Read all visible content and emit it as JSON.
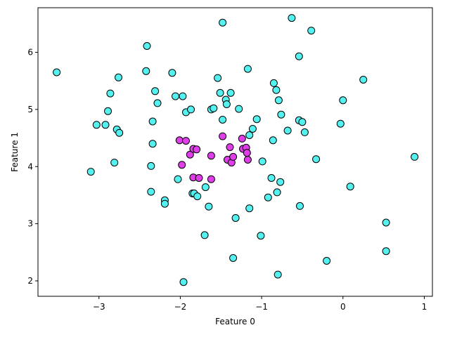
{
  "chart_data": {
    "type": "scatter",
    "title": "",
    "xlabel": "Feature 0",
    "ylabel": "Feature 1",
    "xlim": [
      -3.75,
      1.1
    ],
    "ylim": [
      1.73,
      6.78
    ],
    "xticks": [
      -3,
      -2,
      -1,
      0,
      1
    ],
    "yticks": [
      2,
      3,
      4,
      5,
      6
    ],
    "xtick_labels": [
      "−3",
      "−2",
      "−1",
      "0",
      "1"
    ],
    "ytick_labels": [
      "2",
      "3",
      "4",
      "5",
      "6"
    ],
    "grid": false,
    "colors": {
      "cyan": "#54f1f1",
      "magenta": "#df3ee8",
      "edge": "#000000"
    },
    "series": [
      {
        "color": "#54f1f1",
        "points": [
          [
            -3.52,
            5.65
          ],
          [
            -3.1,
            3.91
          ],
          [
            -3.03,
            4.73
          ],
          [
            -2.92,
            4.73
          ],
          [
            -2.89,
            4.97
          ],
          [
            -2.86,
            5.28
          ],
          [
            -2.81,
            4.07
          ],
          [
            -2.78,
            4.65
          ],
          [
            -2.76,
            5.56
          ],
          [
            -2.75,
            4.59
          ],
          [
            -2.41,
            6.11
          ],
          [
            -2.42,
            5.67
          ],
          [
            -2.36,
            3.56
          ],
          [
            -2.36,
            4.01
          ],
          [
            -2.34,
            4.4
          ],
          [
            -2.34,
            4.79
          ],
          [
            -2.31,
            5.32
          ],
          [
            -2.28,
            5.11
          ],
          [
            -2.19,
            3.41
          ],
          [
            -2.19,
            3.35
          ],
          [
            -2.1,
            5.64
          ],
          [
            -2.06,
            5.23
          ],
          [
            -2.03,
            3.78
          ],
          [
            -1.97,
            5.23
          ],
          [
            -1.93,
            4.95
          ],
          [
            -1.96,
            1.98
          ],
          [
            -1.87,
            5.0
          ],
          [
            -1.85,
            3.53
          ],
          [
            -1.83,
            3.53
          ],
          [
            -1.79,
            3.48
          ],
          [
            -1.69,
            3.64
          ],
          [
            -1.7,
            2.8
          ],
          [
            -1.65,
            3.3
          ],
          [
            -1.62,
            5.0
          ],
          [
            -1.59,
            5.02
          ],
          [
            -1.54,
            5.55
          ],
          [
            -1.51,
            5.29
          ],
          [
            -1.48,
            6.52
          ],
          [
            -1.48,
            4.82
          ],
          [
            -1.44,
            5.17
          ],
          [
            -1.43,
            5.09
          ],
          [
            -1.38,
            5.29
          ],
          [
            -1.35,
            2.4
          ],
          [
            -1.32,
            3.1
          ],
          [
            -1.28,
            5.01
          ],
          [
            -1.17,
            5.71
          ],
          [
            -1.15,
            4.55
          ],
          [
            -1.15,
            3.27
          ],
          [
            -1.11,
            4.66
          ],
          [
            -1.06,
            4.83
          ],
          [
            -1.01,
            2.79
          ],
          [
            -0.99,
            4.09
          ],
          [
            -0.92,
            3.46
          ],
          [
            -0.88,
            3.8
          ],
          [
            -0.86,
            4.46
          ],
          [
            -0.85,
            5.46
          ],
          [
            -0.82,
            5.34
          ],
          [
            -0.81,
            3.55
          ],
          [
            -0.79,
            5.16
          ],
          [
            -0.8,
            2.11
          ],
          [
            -0.77,
            3.73
          ],
          [
            -0.76,
            4.91
          ],
          [
            -0.68,
            4.63
          ],
          [
            -0.63,
            6.6
          ],
          [
            -0.54,
            5.93
          ],
          [
            -0.54,
            4.81
          ],
          [
            -0.53,
            3.31
          ],
          [
            -0.5,
            4.78
          ],
          [
            -0.47,
            4.6
          ],
          [
            -0.39,
            6.38
          ],
          [
            -0.33,
            4.13
          ],
          [
            -0.2,
            2.35
          ],
          [
            -0.03,
            4.75
          ],
          [
            0.0,
            5.16
          ],
          [
            0.09,
            3.65
          ],
          [
            0.25,
            5.52
          ],
          [
            0.53,
            3.02
          ],
          [
            0.53,
            2.52
          ],
          [
            0.88,
            4.17
          ]
        ]
      },
      {
        "color": "#df3ee8",
        "points": [
          [
            -2.01,
            4.46
          ],
          [
            -1.98,
            4.03
          ],
          [
            -1.93,
            4.45
          ],
          [
            -1.88,
            4.21
          ],
          [
            -1.84,
            4.31
          ],
          [
            -1.84,
            3.81
          ],
          [
            -1.8,
            4.3
          ],
          [
            -1.77,
            3.8
          ],
          [
            -1.62,
            4.19
          ],
          [
            -1.62,
            3.78
          ],
          [
            -1.48,
            4.53
          ],
          [
            -1.42,
            4.12
          ],
          [
            -1.39,
            4.34
          ],
          [
            -1.37,
            4.07
          ],
          [
            -1.35,
            4.17
          ],
          [
            -1.24,
            4.49
          ],
          [
            -1.23,
            4.31
          ],
          [
            -1.19,
            4.33
          ],
          [
            -1.18,
            4.24
          ],
          [
            -1.17,
            4.12
          ]
        ]
      }
    ]
  }
}
